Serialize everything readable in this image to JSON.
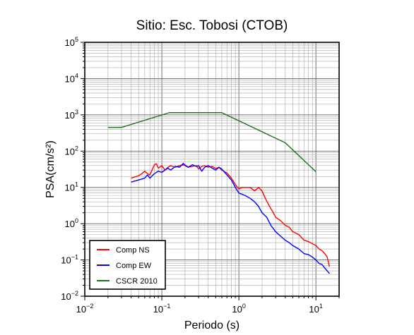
{
  "chart_data": {
    "type": "line",
    "title": "Sitio: Esc. Tobosi (CTOB)",
    "xlabel": "Periodo (s)",
    "ylabel": "PSA(cm/s²)",
    "xscale": "log",
    "yscale": "log",
    "xlim": [
      0.01,
      20
    ],
    "ylim": [
      0.01,
      100000
    ],
    "x_ticks": [
      {
        "base": "10",
        "exp": "−2"
      },
      {
        "base": "10",
        "exp": "−1"
      },
      {
        "base": "10",
        "exp": "0"
      },
      {
        "base": "10",
        "exp": "1"
      }
    ],
    "y_ticks": [
      {
        "base": "10",
        "exp": "−2"
      },
      {
        "base": "10",
        "exp": "−1"
      },
      {
        "base": "10",
        "exp": "0"
      },
      {
        "base": "10",
        "exp": "1"
      },
      {
        "base": "10",
        "exp": "2"
      },
      {
        "base": "10",
        "exp": "3"
      },
      {
        "base": "10",
        "exp": "4"
      },
      {
        "base": "10",
        "exp": "5"
      }
    ],
    "grid": true,
    "legend_position": "bottom-left",
    "series": [
      {
        "name": "Comp NS",
        "color": "#ff0000",
        "x": [
          0.04,
          0.05,
          0.055,
          0.06,
          0.065,
          0.07,
          0.08,
          0.085,
          0.09,
          0.1,
          0.11,
          0.12,
          0.13,
          0.15,
          0.17,
          0.2,
          0.22,
          0.25,
          0.28,
          0.3,
          0.33,
          0.36,
          0.4,
          0.45,
          0.5,
          0.55,
          0.6,
          0.7,
          0.8,
          0.9,
          1.0,
          1.1,
          1.2,
          1.4,
          1.6,
          1.8,
          2.0,
          2.2,
          2.5,
          2.8,
          3.0,
          3.5,
          4.0,
          4.5,
          5.0,
          6.0,
          7.0,
          8.0,
          9.0,
          10.0,
          11.0,
          12.0,
          13.0,
          14.0,
          15.0
        ],
        "y": [
          18,
          21,
          24,
          28,
          24,
          22,
          42,
          45,
          34,
          40,
          30,
          36,
          40,
          36,
          40,
          42,
          36,
          38,
          40,
          32,
          38,
          40,
          36,
          38,
          33,
          36,
          30,
          25,
          18,
          12,
          9,
          10,
          10,
          10,
          8,
          10,
          8,
          5,
          3,
          2,
          1.5,
          1.2,
          0.9,
          0.8,
          0.6,
          0.5,
          0.35,
          0.32,
          0.28,
          0.25,
          0.2,
          0.18,
          0.15,
          0.12,
          0.065
        ]
      },
      {
        "name": "Comp EW",
        "color": "#0000ff",
        "x": [
          0.04,
          0.05,
          0.06,
          0.065,
          0.07,
          0.08,
          0.09,
          0.1,
          0.11,
          0.12,
          0.13,
          0.15,
          0.17,
          0.19,
          0.2,
          0.22,
          0.25,
          0.28,
          0.3,
          0.33,
          0.36,
          0.4,
          0.45,
          0.5,
          0.55,
          0.6,
          0.7,
          0.8,
          0.9,
          1.0,
          1.2,
          1.4,
          1.6,
          1.8,
          2.0,
          2.3,
          2.6,
          3.0,
          3.5,
          4.0,
          4.5,
          5.0,
          6.0,
          7.0,
          8.0,
          9.0,
          10.0,
          11.0,
          12.0,
          13.0,
          14.0,
          15.0
        ],
        "y": [
          14,
          16,
          18,
          22,
          18,
          24,
          28,
          26,
          30,
          34,
          30,
          38,
          36,
          46,
          40,
          36,
          42,
          38,
          40,
          28,
          36,
          40,
          34,
          30,
          36,
          32,
          22,
          16,
          10,
          7,
          6,
          5,
          4,
          3,
          2,
          1.5,
          0.9,
          0.6,
          0.45,
          0.35,
          0.3,
          0.25,
          0.2,
          0.15,
          0.14,
          0.12,
          0.1,
          0.08,
          0.075,
          0.06,
          0.05,
          0.042
        ]
      },
      {
        "name": "CSCR 2010",
        "color": "#207020",
        "x": [
          0.02,
          0.03,
          0.125,
          0.6,
          4.0,
          10.0
        ],
        "y": [
          450,
          450,
          1150,
          1150,
          170,
          27
        ]
      }
    ]
  }
}
